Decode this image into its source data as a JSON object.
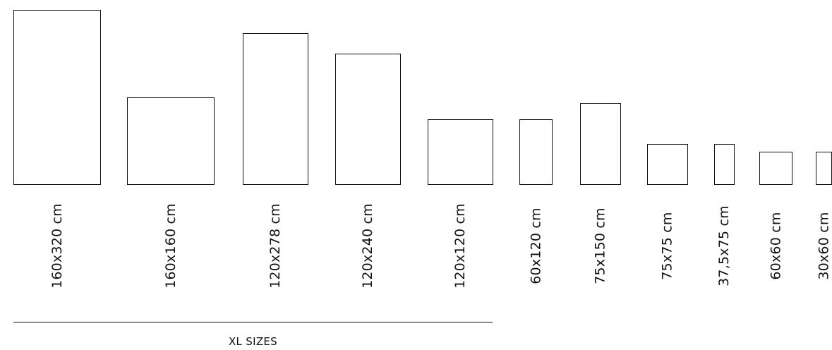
{
  "tiles": [
    {
      "label": "160x320 cm",
      "width_cm": 160,
      "height_cm": 320
    },
    {
      "label": "160x160 cm",
      "width_cm": 160,
      "height_cm": 160
    },
    {
      "label": "120x278 cm",
      "width_cm": 120,
      "height_cm": 278
    },
    {
      "label": "120x240 cm",
      "width_cm": 120,
      "height_cm": 240
    },
    {
      "label": "120x120 cm",
      "width_cm": 120,
      "height_cm": 120
    },
    {
      "label": "60x120 cm",
      "width_cm": 60,
      "height_cm": 120
    },
    {
      "label": "75x150 cm",
      "width_cm": 75,
      "height_cm": 150
    },
    {
      "label": "75x75 cm",
      "width_cm": 75,
      "height_cm": 75
    },
    {
      "label": "37,5x75 cm",
      "width_cm": 37.5,
      "height_cm": 75
    },
    {
      "label": "60x60 cm",
      "width_cm": 60,
      "height_cm": 60
    },
    {
      "label": "30x60 cm",
      "width_cm": 30,
      "height_cm": 60
    }
  ],
  "xl_group": {
    "caption": "XL SIZES"
  }
}
